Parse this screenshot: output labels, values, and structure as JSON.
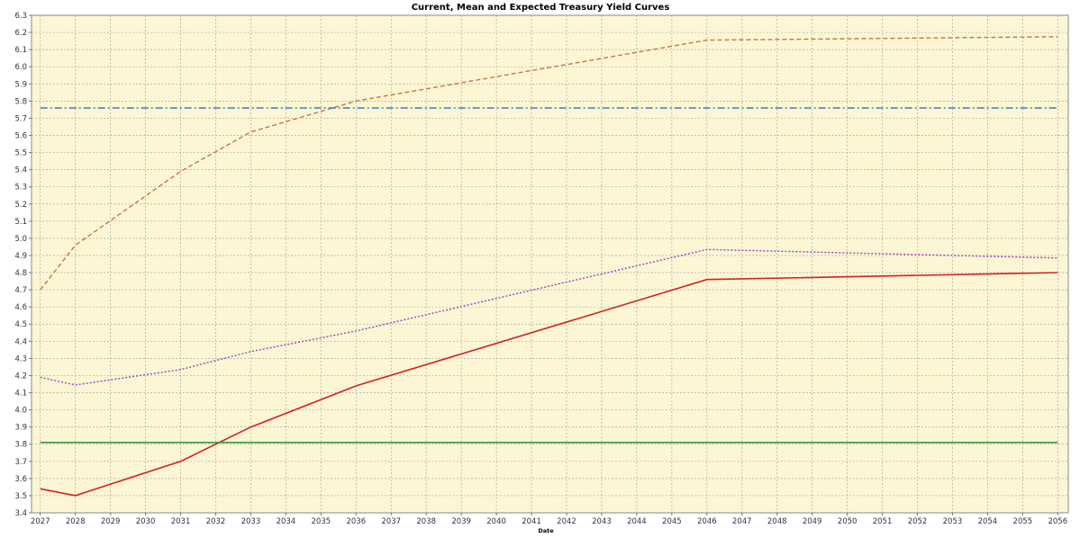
{
  "chart_data": {
    "type": "line",
    "title": "Current, Mean and Expected Treasury Yield Curves",
    "xlabel": "Date",
    "ylabel": "",
    "ylim": [
      3.4,
      6.3
    ],
    "xlim": [
      2026.75,
      2056.3
    ],
    "grid": true,
    "background": "#fdf6d4",
    "y_ticks": [
      "3.4",
      "3.5",
      "3.6",
      "3.7",
      "3.8",
      "3.9",
      "4.0",
      "4.1",
      "4.2",
      "4.3",
      "4.4",
      "4.5",
      "4.6",
      "4.7",
      "4.8",
      "4.9",
      "5.0",
      "5.1",
      "5.2",
      "5.3",
      "5.4",
      "5.5",
      "5.6",
      "5.7",
      "5.8",
      "5.9",
      "6.0",
      "6.1",
      "6.2",
      "6.3"
    ],
    "x_ticks": [
      "2027",
      "2028",
      "2029",
      "2030",
      "2031",
      "2032",
      "2033",
      "2034",
      "2035",
      "2036",
      "2037",
      "2038",
      "2039",
      "2040",
      "2041",
      "2042",
      "2043",
      "2044",
      "2045",
      "2046",
      "2047",
      "2048",
      "2049",
      "2050",
      "2051",
      "2052",
      "2053",
      "2054",
      "2055",
      "2056"
    ],
    "series": [
      {
        "color": "#c0784a",
        "dash": "dashed",
        "x": [
          2027,
          2028,
          2031,
          2033,
          2036,
          2046,
          2056
        ],
        "y": [
          4.7,
          4.96,
          5.39,
          5.62,
          5.8,
          6.155,
          6.175
        ]
      },
      {
        "color": "#2f7fd0",
        "dash": "dashdot",
        "x": [
          2027,
          2056
        ],
        "y": [
          5.76,
          5.76
        ]
      },
      {
        "color": "#9b40c8",
        "dash": "dotted",
        "x": [
          2027,
          2028,
          2031,
          2033,
          2036,
          2046,
          2056
        ],
        "y": [
          4.19,
          4.145,
          4.235,
          4.34,
          4.46,
          4.935,
          4.885
        ]
      },
      {
        "color": "#d42020",
        "dash": "solid",
        "x": [
          2027,
          2028,
          2031,
          2033,
          2036,
          2046,
          2056
        ],
        "y": [
          3.54,
          3.5,
          3.7,
          3.9,
          4.14,
          4.76,
          4.8
        ]
      },
      {
        "color": "#3a9a3a",
        "dash": "solid",
        "x": [
          2027,
          2056
        ],
        "y": [
          3.81,
          3.81
        ]
      }
    ]
  }
}
